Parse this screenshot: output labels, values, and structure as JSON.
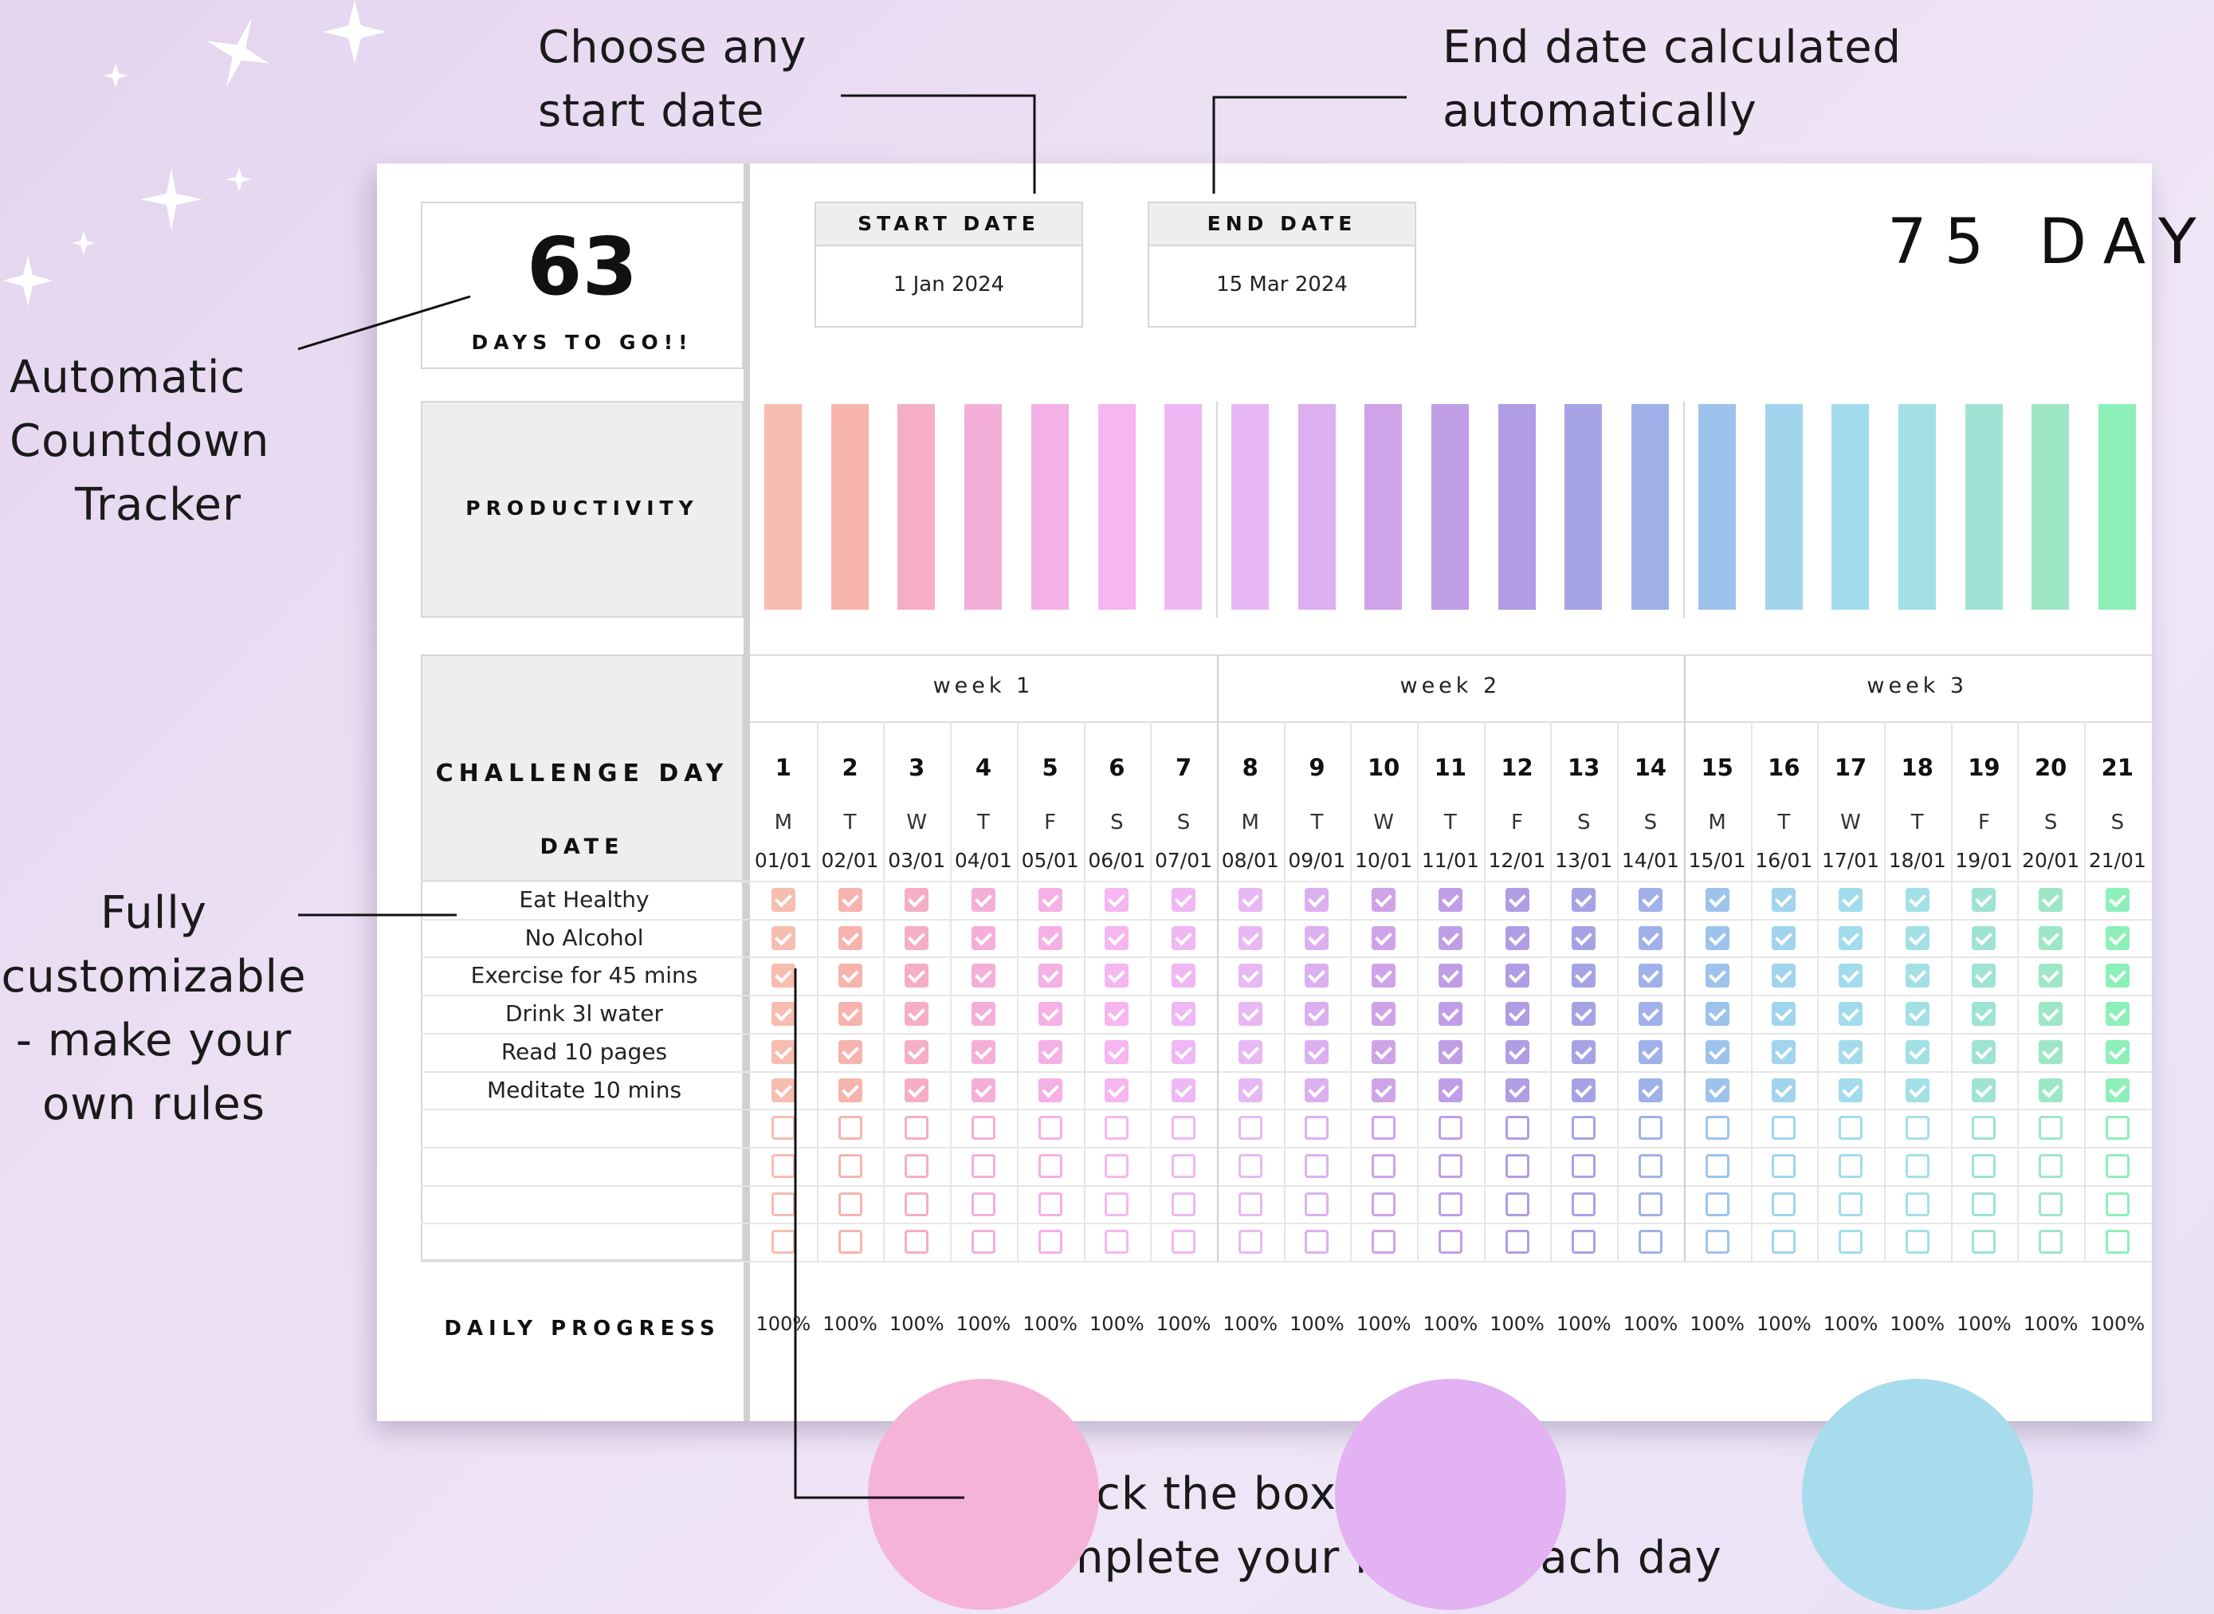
{
  "annotations": {
    "start_date_note": [
      "Choose any",
      "start date"
    ],
    "end_date_note": [
      "End date calculated",
      "automatically"
    ],
    "countdown_note": [
      "Automatic",
      "Countdown",
      "Tracker"
    ],
    "custom_note": [
      "Fully",
      "customizable",
      "- make your",
      "own rules"
    ],
    "check_note": [
      "Check the boxes as you",
      "complete your habits each day"
    ]
  },
  "countdown": {
    "number": "63",
    "label": "DAYS TO GO!!"
  },
  "start_date": {
    "label": "START DATE",
    "value": "1 Jan 2024"
  },
  "end_date": {
    "label": "END DATE",
    "value": "15 Mar 2024"
  },
  "title": "75 DAY",
  "productivity_label": "PRODUCTIVITY",
  "challenge_day_label": "CHALLENGE DAY",
  "date_label": "DATE",
  "daily_progress_label": "DAILY PROGRESS",
  "weeks": [
    "week 1",
    "week 2",
    "week 3"
  ],
  "days": [
    "1",
    "2",
    "3",
    "4",
    "5",
    "6",
    "7",
    "8",
    "9",
    "10",
    "11",
    "12",
    "13",
    "14",
    "15",
    "16",
    "17",
    "18",
    "19",
    "20",
    "21"
  ],
  "weekdays": [
    "M",
    "T",
    "W",
    "T",
    "F",
    "S",
    "S",
    "M",
    "T",
    "W",
    "T",
    "F",
    "S",
    "S",
    "M",
    "T",
    "W",
    "T",
    "F",
    "S",
    "S"
  ],
  "dates": [
    "01/01",
    "02/01",
    "03/01",
    "04/01",
    "05/01",
    "06/01",
    "07/01",
    "08/01",
    "09/01",
    "10/01",
    "11/01",
    "12/01",
    "13/01",
    "14/01",
    "15/01",
    "16/01",
    "17/01",
    "18/01",
    "19/01",
    "20/01",
    "21/01"
  ],
  "habits": [
    "Eat Healthy",
    "No Alcohol",
    "Exercise for 45 mins",
    "Drink 3l water",
    "Read 10 pages",
    "Meditate 10 mins",
    "",
    "",
    "",
    ""
  ],
  "checked_rows": 6,
  "progress": [
    "100%",
    "100%",
    "100%",
    "100%",
    "100%",
    "100%",
    "100%",
    "100%",
    "100%",
    "100%",
    "100%",
    "100%",
    "100%",
    "100%",
    "100%",
    "100%",
    "100%",
    "100%",
    "100%",
    "100%",
    "100%"
  ],
  "productivity_fill": [
    1,
    1,
    1,
    1,
    1,
    1,
    1,
    1,
    1,
    1,
    1,
    1,
    1,
    1,
    1,
    1,
    1,
    1,
    1,
    1,
    1
  ],
  "day_colors": [
    "#f7bdb0",
    "#f7b3ae",
    "#f5aec6",
    "#f4afd8",
    "#f5b0e6",
    "#f6b6f0",
    "#efb7f3",
    "#e8b8f4",
    "#dcb0f0",
    "#cfa3e7",
    "#bf9ee6",
    "#b09de4",
    "#a6a3e5",
    "#9fb1e8",
    "#9dc3ec",
    "#a1d4ed",
    "#a2dcec",
    "#a3e0e6",
    "#9fe3d4",
    "#9ee7c6",
    "#8df0b8"
  ],
  "circle_colors": [
    "#f5b3d8",
    "#e2b2f2",
    "#a7dcec"
  ]
}
